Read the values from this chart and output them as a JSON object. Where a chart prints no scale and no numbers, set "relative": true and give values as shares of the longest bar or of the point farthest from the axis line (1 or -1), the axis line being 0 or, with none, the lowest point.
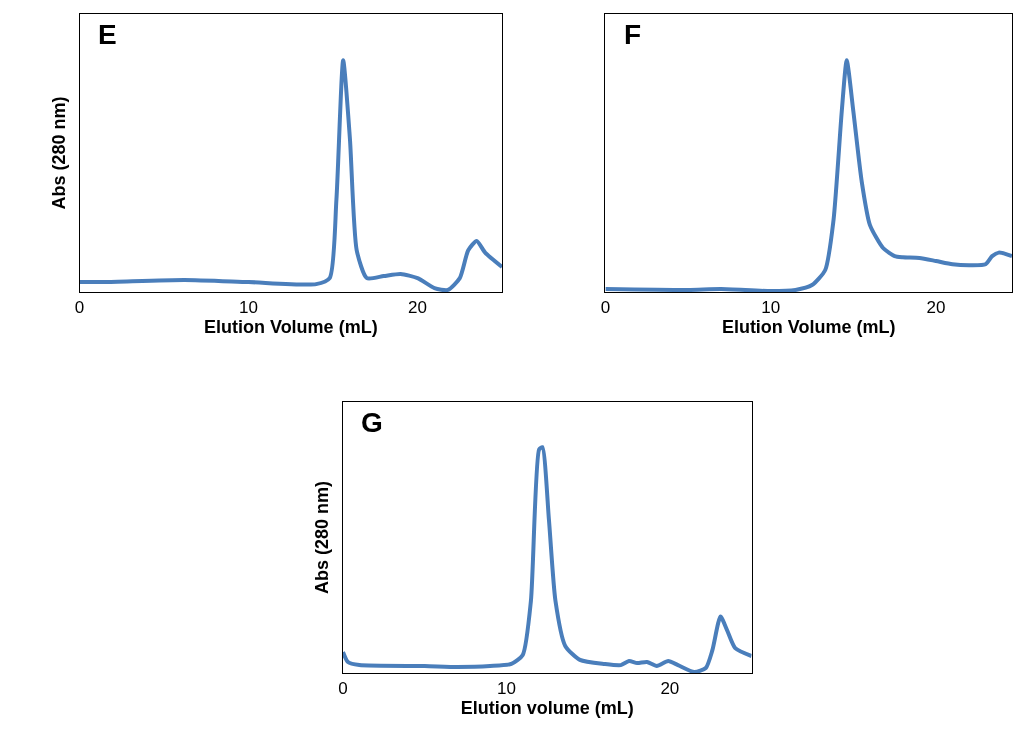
{
  "chart_data": [
    {
      "type": "line",
      "relative": true,
      "xlabel": "Elution Volume (mL)",
      "ylabel": "Abs (280 nm)",
      "annotations": [
        "E"
      ],
      "xlim": [
        0,
        25
      ],
      "xticks": [
        0,
        10,
        20
      ],
      "marker": "none",
      "line_style": "solid",
      "series": [
        {
          "color": "#4a7ebb",
          "x": [
            0,
            1.5,
            6.2,
            10,
            14,
            14.8,
            15.2,
            15.6,
            16.0,
            16.4,
            17,
            18,
            19,
            20,
            21,
            21.8,
            22.5,
            23,
            23.5,
            24,
            25
          ],
          "values": [
            0.043,
            0.043,
            0.052,
            0.043,
            0.034,
            0.06,
            0.4,
            1.0,
            0.66,
            0.18,
            0.06,
            0.069,
            0.078,
            0.06,
            0.017,
            0.009,
            0.06,
            0.18,
            0.22,
            0.17,
            0.108
          ]
        }
      ]
    },
    {
      "type": "line",
      "relative": true,
      "xlabel": "Elution Volume (mL)",
      "annotations": [
        "F"
      ],
      "xlim": [
        0,
        24.6
      ],
      "xticks": [
        0,
        10,
        20
      ],
      "marker": "none",
      "line_style": "solid",
      "series": [
        {
          "color": "#4a7ebb",
          "x": [
            0,
            5,
            7,
            10,
            11.5,
            12.5,
            13.3,
            13.8,
            14.3,
            14.6,
            15.0,
            15.5,
            16,
            16.8,
            17.5,
            18,
            19,
            20,
            21,
            22,
            23,
            23.4,
            23.8,
            24.6
          ],
          "values": [
            0.013,
            0.009,
            0.013,
            0.004,
            0.009,
            0.03,
            0.095,
            0.31,
            0.78,
            1.0,
            0.78,
            0.48,
            0.29,
            0.19,
            0.155,
            0.15,
            0.147,
            0.134,
            0.12,
            0.116,
            0.12,
            0.155,
            0.17,
            0.155
          ]
        }
      ]
    },
    {
      "type": "line",
      "relative": true,
      "xlabel": "Elution volume (mL)",
      "ylabel": "Abs (280 nm)",
      "annotations": [
        "G"
      ],
      "xlim": [
        0,
        25
      ],
      "xticks": [
        0,
        10,
        20
      ],
      "marker": "none",
      "line_style": "solid",
      "series": [
        {
          "color": "#4a7ebb",
          "x": [
            0,
            0.3,
            1,
            5,
            7,
            9,
            10.3,
            11,
            11.5,
            12,
            12.2,
            12.6,
            13,
            13.6,
            14.5,
            16,
            17,
            17.5,
            18,
            18.6,
            19.2,
            19.9,
            20.5,
            21.5,
            22.2,
            22.6,
            23.1,
            23.5,
            24,
            25
          ],
          "values": [
            0.093,
            0.049,
            0.035,
            0.031,
            0.027,
            0.031,
            0.04,
            0.08,
            0.32,
            0.99,
            1.0,
            0.68,
            0.32,
            0.12,
            0.058,
            0.04,
            0.035,
            0.053,
            0.044,
            0.049,
            0.031,
            0.053,
            0.035,
            0.004,
            0.022,
            0.1,
            0.25,
            0.19,
            0.11,
            0.075
          ]
        }
      ]
    }
  ]
}
